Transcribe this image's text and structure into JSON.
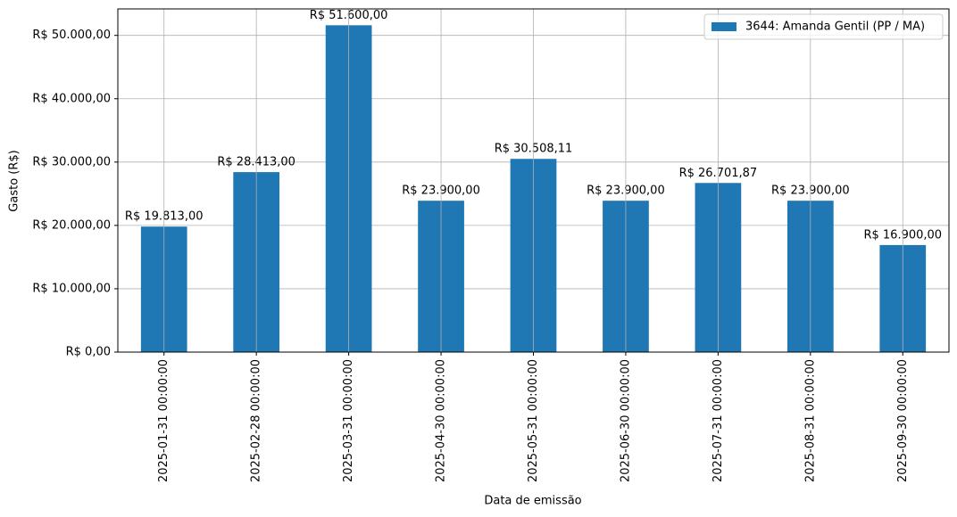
{
  "chart_data": {
    "type": "bar",
    "x_label": "Data de emissão",
    "y_label": "Gasto (R$)",
    "categories": [
      "2025-01-31 00:00:00",
      "2025-02-28 00:00:00",
      "2025-03-31 00:00:00",
      "2025-04-30 00:00:00",
      "2025-05-31 00:00:00",
      "2025-06-30 00:00:00",
      "2025-07-31 00:00:00",
      "2025-08-31 00:00:00",
      "2025-09-30 00:00:00"
    ],
    "series": [
      {
        "name": "3644: Amanda Gentil (PP / MA)",
        "color": "#1f77b4",
        "values": [
          19813.0,
          28413.0,
          51600.0,
          23900.0,
          30508.11,
          23900.0,
          26701.87,
          23900.0,
          16900.0
        ],
        "value_labels": [
          "R$ 19.813,00",
          "R$ 28.413,00",
          "R$ 51.600,00",
          "R$ 23.900,00",
          "R$ 30.508,11",
          "R$ 23.900,00",
          "R$ 26.701,87",
          "R$ 23.900,00",
          "R$ 16.900,00"
        ]
      }
    ],
    "ylim": [
      0,
      54180
    ],
    "yticks": [
      {
        "value": 0,
        "label": "R$ 0,00"
      },
      {
        "value": 10000,
        "label": "R$ 10.000,00"
      },
      {
        "value": 20000,
        "label": "R$ 20.000,00"
      },
      {
        "value": 30000,
        "label": "R$ 30.000,00"
      },
      {
        "value": 40000,
        "label": "R$ 40.000,00"
      },
      {
        "value": 50000,
        "label": "R$ 50.000,00"
      }
    ],
    "grid": true,
    "legend": "upper right"
  }
}
